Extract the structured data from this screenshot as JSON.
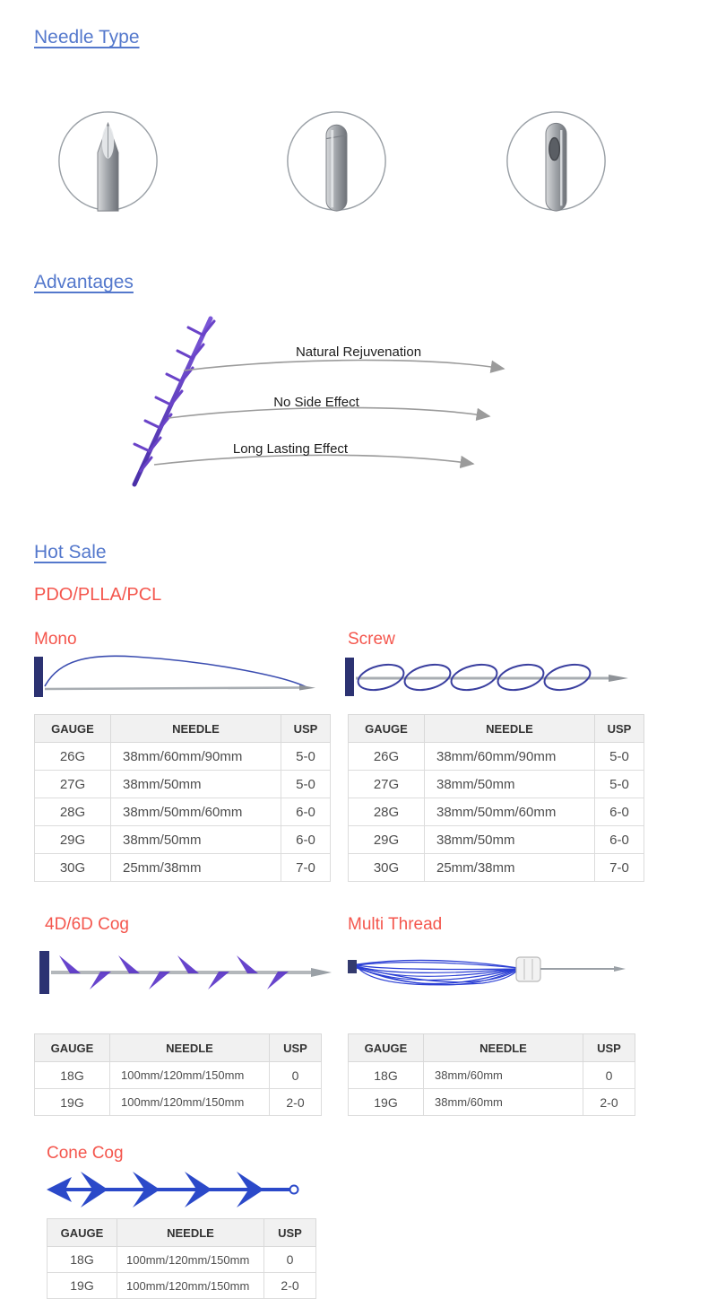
{
  "colors": {
    "link_blue": "#5478cc",
    "accent_red": "#f4564d",
    "table_header_bg": "#f1f1f1"
  },
  "needle_type": {
    "title": "Needle Type"
  },
  "advantages": {
    "title": "Advantages",
    "labels": [
      "Natural Rejuvenation",
      "No Side Effect",
      "Long Lasting Effect"
    ]
  },
  "hot_sale": {
    "title": "Hot Sale",
    "subtitle": "PDO/PLLA/PCL"
  },
  "table_headers": {
    "gauge": "GAUGE",
    "needle": "NEEDLE",
    "usp": "USP"
  },
  "icons": [
    "sharp-needle-tip",
    "blunt-cannula-tip",
    "side-port-cannula-tip"
  ],
  "products": {
    "mono": {
      "name": "Mono",
      "rows": [
        [
          "26G",
          "38mm/60mm/90mm",
          "5-0"
        ],
        [
          "27G",
          "38mm/50mm",
          "5-0"
        ],
        [
          "28G",
          "38mm/50mm/60mm",
          "6-0"
        ],
        [
          "29G",
          "38mm/50mm",
          "6-0"
        ],
        [
          "30G",
          "25mm/38mm",
          "7-0"
        ]
      ]
    },
    "screw": {
      "name": "Screw",
      "rows": [
        [
          "26G",
          "38mm/60mm/90mm",
          "5-0"
        ],
        [
          "27G",
          "38mm/50mm",
          "5-0"
        ],
        [
          "28G",
          "38mm/50mm/60mm",
          "6-0"
        ],
        [
          "29G",
          "38mm/50mm",
          "6-0"
        ],
        [
          "30G",
          "25mm/38mm",
          "7-0"
        ]
      ]
    },
    "cog": {
      "name": "4D/6D Cog",
      "rows": [
        [
          "18G",
          "100mm/120mm/150mm",
          "0"
        ],
        [
          "19G",
          "100mm/120mm/150mm",
          "2-0"
        ]
      ]
    },
    "multi": {
      "name": "Multi Thread",
      "rows": [
        [
          "18G",
          "38mm/60mm",
          "0"
        ],
        [
          "19G",
          "38mm/60mm",
          "2-0"
        ]
      ]
    },
    "cone": {
      "name": "Cone Cog",
      "rows": [
        [
          "18G",
          "100mm/120mm/150mm",
          "0"
        ],
        [
          "19G",
          "100mm/120mm/150mm",
          "2-0"
        ]
      ]
    }
  }
}
